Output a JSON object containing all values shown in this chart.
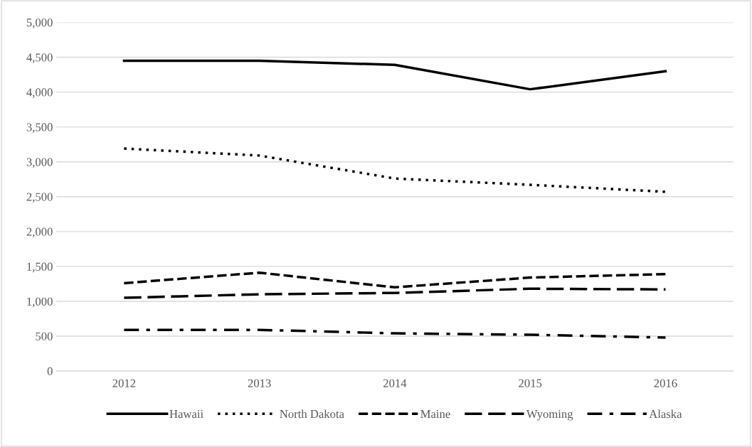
{
  "chart_data": {
    "type": "line",
    "categories": [
      "2012",
      "2013",
      "2014",
      "2015",
      "2016"
    ],
    "series": [
      {
        "name": "Hawaii",
        "color": "#000000",
        "line_style": "solid",
        "values": [
          4450,
          4450,
          4390,
          4040,
          4300
        ]
      },
      {
        "name": "North Dakota",
        "color": "#000000",
        "line_style": "dotted",
        "values": [
          3190,
          3090,
          2760,
          2670,
          2570
        ]
      },
      {
        "name": "Maine",
        "color": "#000000",
        "line_style": "dashed",
        "values": [
          1260,
          1410,
          1200,
          1340,
          1390
        ]
      },
      {
        "name": "Wyoming",
        "color": "#000000",
        "line_style": "longdash",
        "values": [
          1050,
          1100,
          1120,
          1180,
          1170
        ]
      },
      {
        "name": "Alaska",
        "color": "#000000",
        "line_style": "dashdot",
        "values": [
          590,
          590,
          540,
          520,
          480
        ]
      }
    ],
    "ylim": [
      0,
      5000
    ],
    "yticks": [
      {
        "value": 0,
        "label": "0"
      },
      {
        "value": 500,
        "label": "500"
      },
      {
        "value": 1000,
        "label": "1,000"
      },
      {
        "value": 1500,
        "label": "1,500"
      },
      {
        "value": 2000,
        "label": "2,000"
      },
      {
        "value": 2500,
        "label": "2,500"
      },
      {
        "value": 3000,
        "label": "3,000"
      },
      {
        "value": 3500,
        "label": "3,500"
      },
      {
        "value": 4000,
        "label": "4,000"
      },
      {
        "value": 4500,
        "label": "4,500"
      },
      {
        "value": 5000,
        "label": "5,000"
      }
    ],
    "grid": "y",
    "legend": "bottom",
    "marker": "none"
  }
}
